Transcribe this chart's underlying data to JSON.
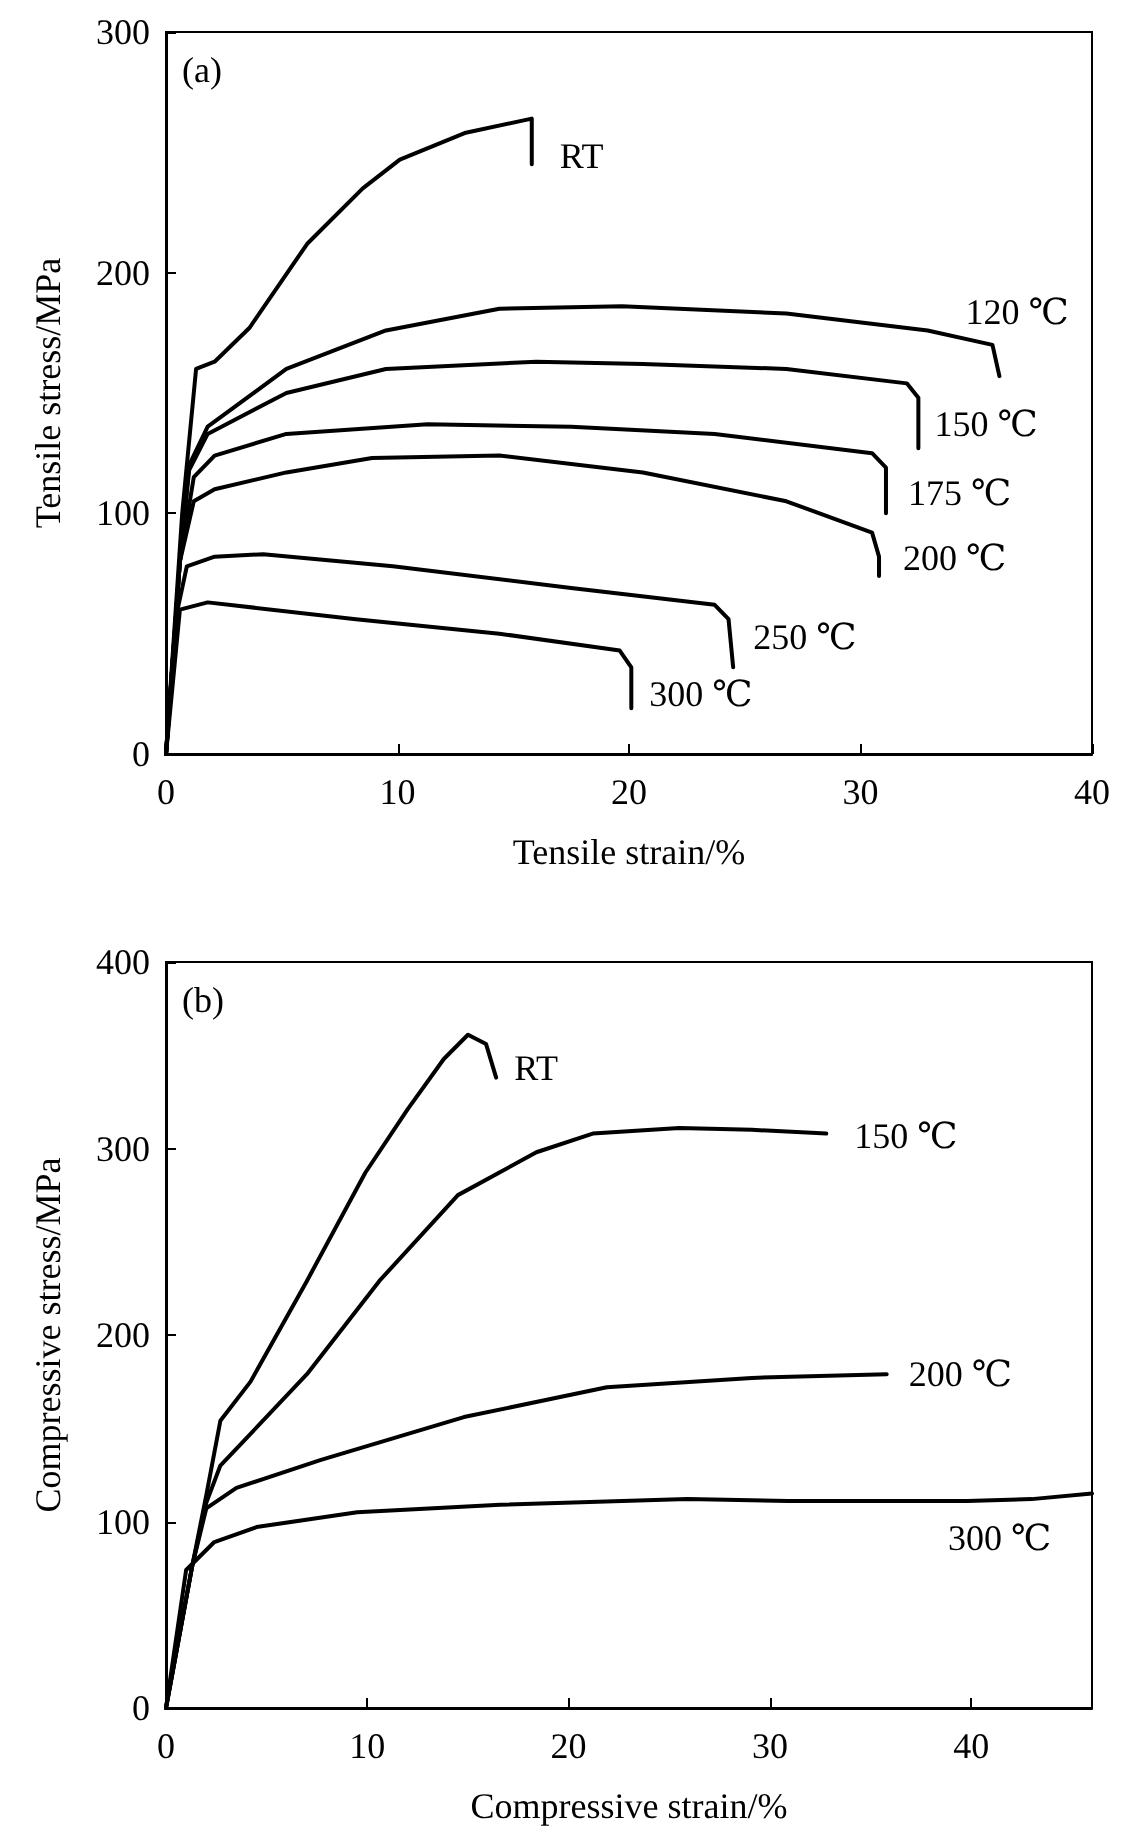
{
  "chart_data": [
    {
      "type": "line",
      "xlabel": "Tensile strain/%",
      "ylabel": "Tensile stress/MPa",
      "xlim": [
        0,
        40
      ],
      "ylim": [
        0,
        300
      ],
      "xticks": [
        0,
        10,
        20,
        30,
        40
      ],
      "yticks": [
        0,
        100,
        200,
        300
      ],
      "grid": false,
      "marker": "none",
      "line_style": "solid",
      "annotations": [
        "(a)"
      ],
      "series": [
        {
          "name": "RT",
          "color": "#000000",
          "x": [
            0,
            0.7,
            1.3,
            2.1,
            3.6,
            6.1,
            8.5,
            10.1,
            12.9,
            15.8,
            15.8
          ],
          "values": [
            0,
            100,
            160,
            163,
            177,
            212,
            235,
            247,
            258,
            264,
            245
          ]
        },
        {
          "name": "120 ℃",
          "color": "#000000",
          "x": [
            0,
            0.6,
            1.0,
            1.8,
            5.2,
            9.5,
            14.4,
            19.7,
            26.8,
            32.9,
            35.7,
            36
          ],
          "values": [
            0,
            80,
            120,
            136,
            160,
            176,
            185,
            186,
            183,
            176,
            170,
            157
          ]
        },
        {
          "name": "150 ℃",
          "color": "#000000",
          "x": [
            0,
            0.6,
            1.0,
            1.8,
            5.2,
            9.5,
            16,
            20.6,
            26.8,
            32,
            32.5,
            32.5
          ],
          "values": [
            0,
            80,
            118,
            133,
            150,
            160,
            163,
            162,
            160,
            154,
            148,
            127
          ]
        },
        {
          "name": "175 ℃",
          "color": "#000000",
          "x": [
            0,
            0.6,
            1.2,
            2.1,
            5.2,
            11.3,
            17.5,
            23.7,
            30.5,
            31.1,
            31.1
          ],
          "values": [
            0,
            80,
            115,
            124,
            133,
            137,
            136,
            133,
            125,
            119,
            100
          ]
        },
        {
          "name": "200 ℃",
          "color": "#000000",
          "x": [
            0,
            0.6,
            1.2,
            2.1,
            5.2,
            8.9,
            14.4,
            20.6,
            26.8,
            30.5,
            30.8,
            30.8
          ],
          "values": [
            0,
            80,
            105,
            110,
            117,
            123,
            124,
            117,
            105,
            92,
            82,
            74
          ]
        },
        {
          "name": "250 ℃",
          "color": "#000000",
          "x": [
            0,
            0.5,
            0.9,
            2.1,
            4.2,
            9.8,
            17.5,
            23.7,
            24.3,
            24.5
          ],
          "values": [
            0,
            60,
            78,
            82,
            83,
            78,
            69,
            62,
            56,
            36
          ]
        },
        {
          "name": "300 ℃",
          "color": "#000000",
          "x": [
            0,
            0.6,
            1.8,
            8.2,
            14.4,
            19.6,
            20.1,
            20.1
          ],
          "values": [
            0,
            60,
            63,
            56,
            50,
            43,
            36,
            19
          ]
        }
      ]
    },
    {
      "type": "line",
      "xlabel": "Compressive strain/%",
      "ylabel": "Compressive stress/MPa",
      "xlim": [
        0,
        46
      ],
      "ylim": [
        0,
        400
      ],
      "xticks": [
        0,
        10,
        20,
        30,
        40
      ],
      "yticks": [
        0,
        100,
        200,
        300,
        400
      ],
      "grid": false,
      "marker": "none",
      "line_style": "solid",
      "annotations": [
        "(b)"
      ],
      "series": [
        {
          "name": "RT",
          "color": "#000000",
          "x": [
            0,
            1.3,
            2,
            2.7,
            4.2,
            7,
            9.9,
            12,
            13.8,
            15,
            15.9,
            16.4
          ],
          "values": [
            0,
            76,
            114,
            154,
            175,
            229,
            287,
            321,
            348,
            361,
            356,
            338
          ]
        },
        {
          "name": "150 ℃",
          "color": "#000000",
          "x": [
            0,
            1.3,
            2,
            2.7,
            4.2,
            7,
            10.6,
            14.5,
            18.4,
            21.2,
            25.5,
            29.1,
            32.8
          ],
          "values": [
            0,
            76,
            110,
            130,
            147,
            179,
            229,
            275,
            298,
            308,
            311,
            310,
            308
          ]
        },
        {
          "name": "200 ℃",
          "color": "#000000",
          "x": [
            0,
            1.3,
            2,
            3.5,
            7.7,
            14.8,
            21.9,
            29.1,
            35.8
          ],
          "values": [
            0,
            76,
            107,
            118,
            133,
            156,
            172,
            177,
            179
          ]
        },
        {
          "name": "300 ℃",
          "color": "#000000",
          "x": [
            0,
            1,
            2.4,
            4.5,
            9.5,
            16.6,
            25.9,
            30.9,
            39.8,
            43,
            46
          ],
          "values": [
            0,
            74,
            89,
            97,
            105,
            109,
            112,
            111,
            111,
            112,
            115
          ]
        }
      ]
    }
  ]
}
